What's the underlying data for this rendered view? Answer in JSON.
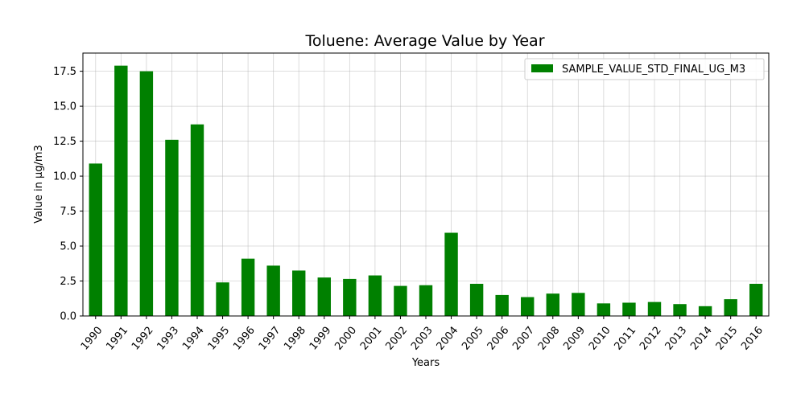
{
  "chart_data": {
    "type": "bar",
    "title": "Toluene: Average Value by Year",
    "xlabel": "Years",
    "ylabel": "Value in µg/m3",
    "categories": [
      "1990",
      "1991",
      "1992",
      "1993",
      "1994",
      "1995",
      "1996",
      "1997",
      "1998",
      "1999",
      "2000",
      "2001",
      "2002",
      "2003",
      "2004",
      "2005",
      "2006",
      "2007",
      "2008",
      "2009",
      "2010",
      "2011",
      "2012",
      "2013",
      "2014",
      "2015",
      "2016"
    ],
    "series": [
      {
        "name": "SAMPLE_VALUE_STD_FINAL_UG_M3",
        "color": "#008000",
        "values": [
          10.9,
          17.9,
          17.5,
          12.6,
          13.7,
          2.4,
          4.1,
          3.6,
          3.25,
          2.75,
          2.65,
          2.9,
          2.15,
          2.2,
          5.95,
          2.3,
          1.5,
          1.35,
          1.6,
          1.65,
          0.9,
          0.95,
          1.0,
          0.85,
          0.7,
          1.2,
          2.3
        ]
      }
    ],
    "ylim": [
      0,
      18.8
    ],
    "yticks": [
      0.0,
      2.5,
      5.0,
      7.5,
      10.0,
      12.5,
      15.0,
      17.5
    ],
    "ytick_labels": [
      "0.0",
      "2.5",
      "5.0",
      "7.5",
      "10.0",
      "12.5",
      "15.0",
      "17.5"
    ],
    "grid": true,
    "legend_position": "top-right"
  }
}
